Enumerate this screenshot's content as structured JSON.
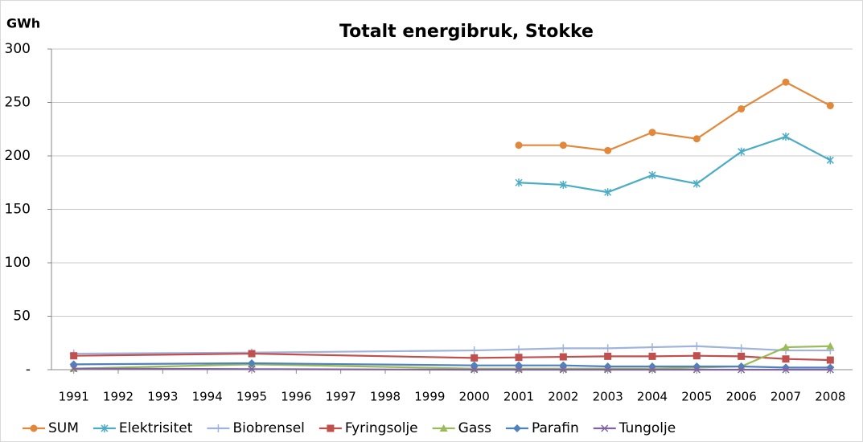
{
  "chart_data": {
    "type": "line",
    "title": "Totalt energibruk, Stokke",
    "ylabel": "GWh",
    "x": [
      1991,
      1995,
      2000,
      2001,
      2002,
      2003,
      2004,
      2005,
      2006,
      2007,
      2008
    ],
    "xlim": [
      1990.5,
      2008.5
    ],
    "xticks": [
      1991,
      1992,
      1993,
      1994,
      1995,
      1996,
      1997,
      1998,
      1999,
      2000,
      2001,
      2002,
      2003,
      2004,
      2005,
      2006,
      2007,
      2008
    ],
    "ylim": [
      0,
      300
    ],
    "yticks": [
      {
        "value": 0,
        "label": "-"
      },
      50,
      100,
      150,
      200,
      250,
      300
    ],
    "grid": true,
    "legend": "bottom",
    "series": [
      {
        "name": "SUM",
        "color": "#e2883a",
        "marker": "circle",
        "values": [
          null,
          null,
          null,
          210,
          210,
          205,
          222,
          216,
          244,
          269,
          247
        ]
      },
      {
        "name": "Elektrisitet",
        "color": "#4bacc6",
        "marker": "asterisk",
        "values": [
          null,
          null,
          null,
          175,
          173,
          166,
          182,
          174,
          204,
          218,
          196
        ]
      },
      {
        "name": "Biobrensel",
        "color": "#9fb3dc",
        "marker": "plus",
        "values": [
          15,
          16,
          18,
          19,
          20,
          20,
          21,
          22,
          20,
          18,
          18
        ]
      },
      {
        "name": "Fyringsolje",
        "color": "#c0504d",
        "marker": "square",
        "values": [
          13,
          15,
          11,
          11.5,
          12,
          12.5,
          12.5,
          13,
          12.5,
          10,
          9
        ]
      },
      {
        "name": "Gass",
        "color": "#9bbb59",
        "marker": "triangle",
        "values": [
          1,
          5,
          1,
          1,
          1,
          1,
          1,
          2,
          3,
          21,
          22
        ]
      },
      {
        "name": "Parafin",
        "color": "#4f81bd",
        "marker": "diamond",
        "values": [
          5,
          6,
          4,
          4,
          4,
          3,
          3,
          3,
          3,
          2,
          2
        ]
      },
      {
        "name": "Tungolje",
        "color": "#8064a2",
        "marker": "x",
        "values": [
          1,
          0.5,
          0,
          0,
          0,
          0,
          0,
          0,
          0,
          0,
          0
        ]
      }
    ]
  }
}
